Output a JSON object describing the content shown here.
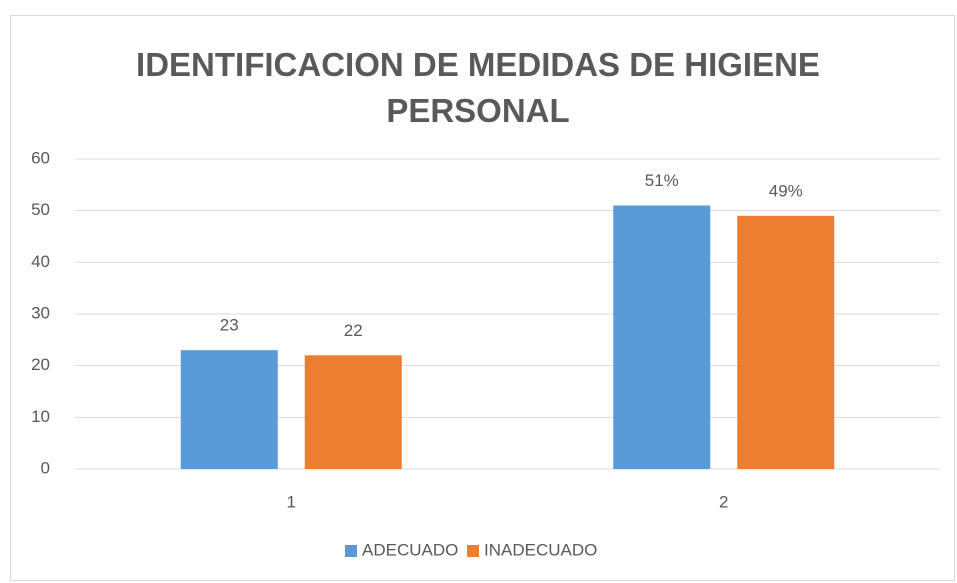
{
  "chart_data": {
    "type": "bar",
    "title": "IDENTIFICACION DE MEDIDAS DE HIGIENE PERSONAL",
    "categories": [
      "1",
      "2"
    ],
    "series": [
      {
        "name": "ADECUADO",
        "color": "#5b9bd5",
        "values": [
          23,
          51
        ],
        "value_labels": [
          "23",
          "51%"
        ]
      },
      {
        "name": "INADECUADO",
        "color": "#ed7d31",
        "values": [
          22,
          49
        ],
        "value_labels": [
          "22",
          "49%"
        ]
      }
    ],
    "ylim": [
      0,
      60
    ],
    "yticks": [
      0,
      10,
      20,
      30,
      40,
      50,
      60
    ],
    "grid": true,
    "legend": "bottom"
  }
}
